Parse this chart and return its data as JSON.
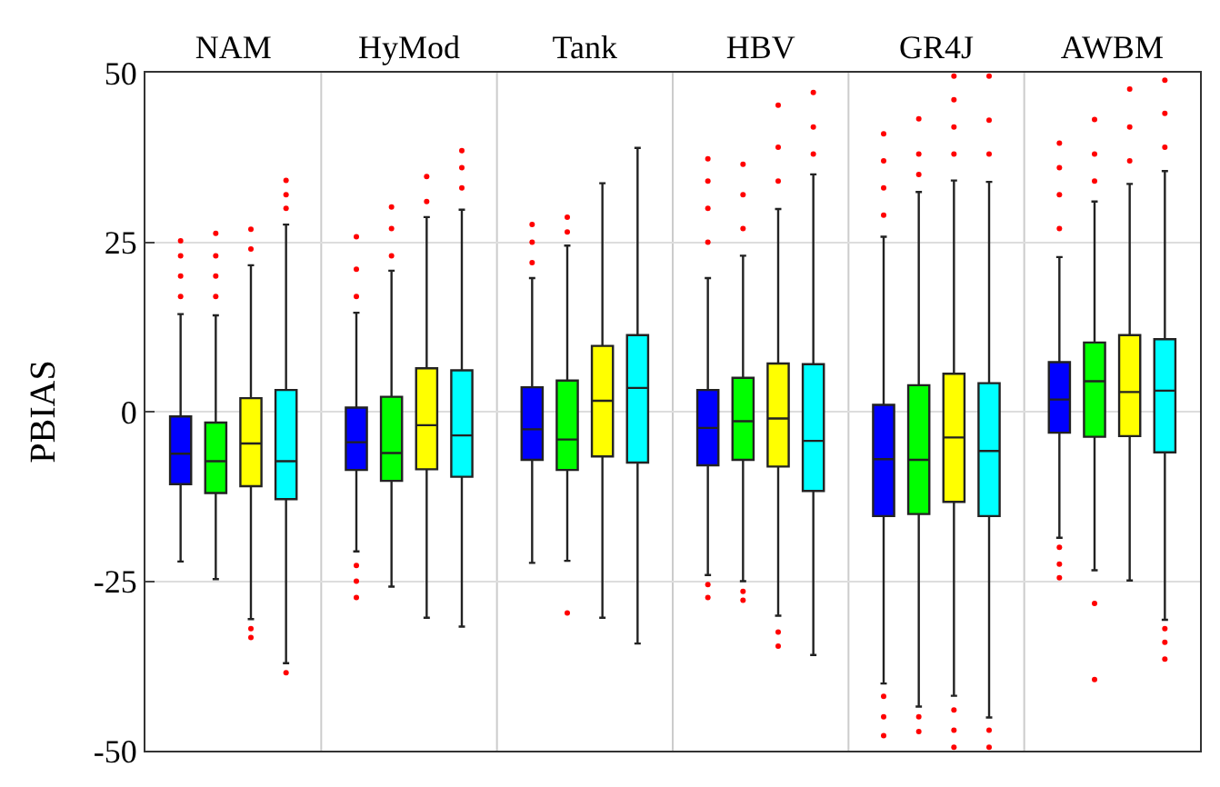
{
  "chart_data": {
    "type": "box",
    "ylabel": "PBIAS",
    "categories": [
      "NAM",
      "HyMod",
      "Tank",
      "HBV",
      "GR4J",
      "AWBM"
    ],
    "ylim": [
      -50,
      50
    ],
    "yticks": [
      -50,
      -25,
      0,
      25,
      50
    ],
    "grid": true,
    "series": [
      {
        "color": "#0000ff",
        "boxes": [
          {
            "low": -22.1,
            "q1": -10.7,
            "median": -6.2,
            "q3": -0.7,
            "high": 14.4,
            "outliers": [
              17,
              20,
              23,
              25.2
            ]
          },
          {
            "low": -20.6,
            "q1": -8.6,
            "median": -4.5,
            "q3": 0.6,
            "high": 14.6,
            "outliers": [
              -22.7,
              -25.0,
              -27.4,
              17,
              21,
              25.8
            ]
          },
          {
            "low": -22.3,
            "q1": -7.1,
            "median": -2.6,
            "q3": 3.6,
            "high": 19.7,
            "outliers": [
              22,
              25,
              27.6
            ]
          },
          {
            "low": -24.1,
            "q1": -7.9,
            "median": -2.4,
            "q3": 3.2,
            "high": 19.7,
            "outliers": [
              -25.5,
              -27.4,
              25,
              30,
              34,
              37.3
            ]
          },
          {
            "low": -40.1,
            "q1": -15.4,
            "median": -7.0,
            "q3": 1.0,
            "high": 25.8,
            "outliers": [
              -42,
              -45,
              -47.8,
              29,
              33,
              37,
              41.0
            ]
          },
          {
            "low": -18.6,
            "q1": -3.1,
            "median": 1.8,
            "q3": 7.3,
            "high": 22.8,
            "outliers": [
              -20,
              -22.5,
              -24.5,
              27,
              32,
              36,
              39.6
            ]
          }
        ]
      },
      {
        "color": "#00ff00",
        "boxes": [
          {
            "low": -24.7,
            "q1": -12.0,
            "median": -7.3,
            "q3": -1.6,
            "high": 14.2,
            "outliers": [
              17,
              20,
              23,
              26.3
            ]
          },
          {
            "low": -25.8,
            "q1": -10.2,
            "median": -6.1,
            "q3": 2.2,
            "high": 20.8,
            "outliers": [
              23,
              27,
              30.2
            ]
          },
          {
            "low": -22.0,
            "q1": -8.6,
            "median": -4.1,
            "q3": 4.6,
            "high": 24.5,
            "outliers": [
              -29.7,
              26.5,
              28.7
            ]
          },
          {
            "low": -25.0,
            "q1": -7.1,
            "median": -1.4,
            "q3": 5.0,
            "high": 23.0,
            "outliers": [
              -26.5,
              -27.8,
              27,
              32,
              36.5
            ]
          },
          {
            "low": -43.5,
            "q1": -15.1,
            "median": -7.1,
            "q3": 3.9,
            "high": 32.4,
            "outliers": [
              -45,
              -47.2,
              35,
              38,
              43.2
            ]
          },
          {
            "low": -23.4,
            "q1": -3.7,
            "median": 4.5,
            "q3": 10.2,
            "high": 31.0,
            "outliers": [
              -28.3,
              -39.5,
              34,
              38,
              43.1
            ]
          }
        ]
      },
      {
        "color": "#ffff00",
        "boxes": [
          {
            "low": -30.6,
            "q1": -11.0,
            "median": -4.7,
            "q3": 2.0,
            "high": 21.6,
            "outliers": [
              -32,
              -33.3,
              24,
              26.9
            ]
          },
          {
            "low": -30.4,
            "q1": -8.5,
            "median": -2.0,
            "q3": 6.4,
            "high": 28.7,
            "outliers": [
              31,
              34.7
            ]
          },
          {
            "low": -30.4,
            "q1": -6.6,
            "median": 1.6,
            "q3": 9.7,
            "high": 33.7
          },
          {
            "low": -30.1,
            "q1": -8.1,
            "median": -1.0,
            "q3": 7.1,
            "high": 29.9,
            "outliers": [
              -32.5,
              -34.6,
              34,
              39,
              45.2
            ]
          },
          {
            "low": -41.9,
            "q1": -13.3,
            "median": -3.8,
            "q3": 5.6,
            "high": 34.1,
            "outliers": [
              -44,
              -47,
              -49.5,
              38,
              42,
              46,
              49.5
            ]
          },
          {
            "low": -24.9,
            "q1": -3.6,
            "median": 2.9,
            "q3": 11.3,
            "high": 33.6,
            "outliers": [
              37,
              42,
              47.6
            ]
          }
        ]
      },
      {
        "color": "#00ffff",
        "boxes": [
          {
            "low": -37.1,
            "q1": -12.9,
            "median": -7.3,
            "q3": 3.2,
            "high": 27.6,
            "outliers": [
              -38.5,
              30,
              32,
              34.1
            ]
          },
          {
            "low": -31.7,
            "q1": -9.6,
            "median": -3.5,
            "q3": 6.1,
            "high": 29.8,
            "outliers": [
              33,
              36,
              38.5
            ]
          },
          {
            "low": -34.2,
            "q1": -7.5,
            "median": 3.5,
            "q3": 11.3,
            "high": 38.9
          },
          {
            "low": -35.9,
            "q1": -11.7,
            "median": -4.3,
            "q3": 7.0,
            "high": 35.0,
            "outliers": [
              38,
              42,
              47.1
            ]
          },
          {
            "low": -45.1,
            "q1": -15.4,
            "median": -5.8,
            "q3": 4.2,
            "high": 33.9,
            "outliers": [
              -47,
              -49.5,
              38,
              43,
              49.5
            ]
          },
          {
            "low": -30.7,
            "q1": -6.0,
            "median": 3.1,
            "q3": 10.7,
            "high": 35.5,
            "outliers": [
              -32,
              -34,
              -36.5,
              39,
              44,
              48.9
            ]
          }
        ]
      }
    ]
  }
}
